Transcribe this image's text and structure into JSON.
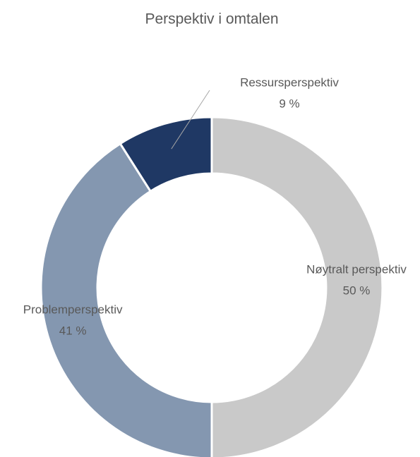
{
  "chart_data": {
    "type": "donut",
    "title": "Perspektiv i omtalen",
    "categories": [
      "Nøytralt perspektiv",
      "Problemperspektiv",
      "Ressursperspektiv"
    ],
    "values": [
      50,
      41,
      9
    ],
    "value_labels": [
      "50 %",
      "41 %",
      "9 %"
    ],
    "colors": [
      "#c9c9c9",
      "#8497b0",
      "#1f3864"
    ]
  }
}
